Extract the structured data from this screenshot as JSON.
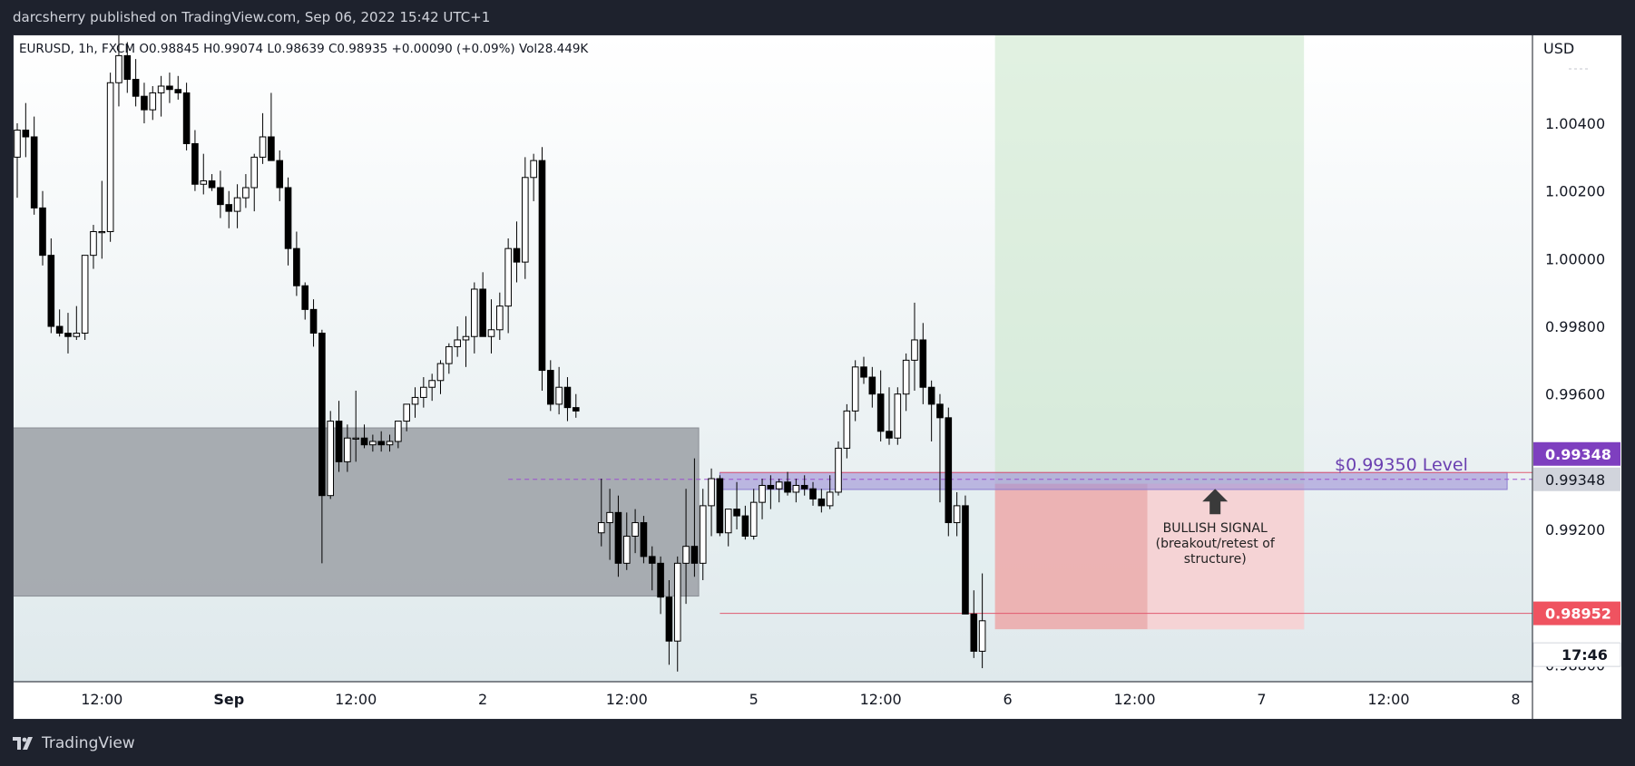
{
  "header": {
    "text": "darcsherry published on TradingView.com, Sep 06, 2022 15:42 UTC+1"
  },
  "footer": {
    "brand": "TradingView",
    "logo_icon": "tradingview-logo-icon"
  },
  "colors": {
    "bull_candle": "#ffffff",
    "bear_candle": "#000000",
    "wick": "#000000",
    "gray_zone": "#a0a4aa",
    "green_zone": "#c8e6c9",
    "red_zone": "#ef9a9a",
    "purple_zone": "#9c8fd6",
    "purple_label": "#7e3fbf",
    "red_label": "#ef5360",
    "gray_label": "#d1d4dc",
    "level_text": "#6a3fb0"
  },
  "chart_data": {
    "type": "candlestick",
    "symbol_info": {
      "symbol": "EURUSD, 1h, FXCM",
      "open": "O0.98845",
      "high": "H0.99074",
      "low": "L0.98639",
      "close": "C0.98935",
      "change": "+0.00090 (+0.09%)",
      "volume": "Vol28.449K"
    },
    "currency": "USD",
    "y_ticks": [
      "1.00400",
      "1.00200",
      "1.00000",
      "0.99800",
      "0.99600",
      "0.99200",
      "0.98800"
    ],
    "y_tick_values": [
      1.004,
      1.002,
      1.0,
      0.998,
      0.996,
      0.992,
      0.988
    ],
    "ylim": [
      0.9875,
      1.0066
    ],
    "x_ticks": [
      "12:00",
      "Sep",
      "12:00",
      "2",
      "12:00",
      "5",
      "12:00",
      "6",
      "12:00",
      "7",
      "12:00",
      "8"
    ],
    "x_tick_bar_index": [
      10,
      25,
      40,
      55,
      70,
      85,
      100,
      115,
      130,
      145,
      160,
      175
    ],
    "price_labels": [
      {
        "text": "0.99348",
        "style": "purple",
        "value": 0.99348
      },
      {
        "text": "0.99348",
        "style": "gray",
        "value": 0.99348
      },
      {
        "text": "0.98952",
        "style": "red",
        "value": 0.98952
      },
      {
        "text": "17:46",
        "style": "white",
        "value": 0.98905
      }
    ],
    "annotations": {
      "level_text": "$0.99350 Level",
      "signal_line1": "BULLISH SIGNAL",
      "signal_line2": "(breakout/retest of",
      "signal_line3": "structure)"
    },
    "zones": {
      "gray": {
        "bar_start": -0.5,
        "bar_end": 78.5,
        "price_top": 0.995,
        "price_bottom": 0.99003
      },
      "purple": {
        "bar_start": 81,
        "bar_end": 174,
        "price_top": 0.99368,
        "price_bottom": 0.99318
      },
      "green": {
        "bar_start": 113.5,
        "bar_end": 150,
        "price_top": 1.0066,
        "price_bottom": 0.99335
      },
      "red": {
        "bar_start": 113.5,
        "bar_end": 150,
        "price_top": 0.99335,
        "price_bottom": 0.98905
      },
      "lower_band": {
        "bar_start": 81,
        "bar_end": 150,
        "price_top": 0.99335,
        "price_bottom": 0.98952
      }
    },
    "lines": {
      "dashed_purple": {
        "bar_start": 58,
        "value": 0.99348
      },
      "red_upper": {
        "bar_start": 81,
        "value": 0.99368
      },
      "red_lower": {
        "bar_start": 81,
        "value": 0.98952
      }
    },
    "candles_ohlc": [
      [
        1.003,
        1.004,
        1.0018,
        1.0038
      ],
      [
        1.0038,
        1.0046,
        1.003,
        1.0036
      ],
      [
        1.0036,
        1.0042,
        1.0013,
        1.0015
      ],
      [
        1.0015,
        1.002,
        0.9998,
        1.0001
      ],
      [
        1.0001,
        1.0006,
        0.9978,
        0.998
      ],
      [
        0.998,
        0.9985,
        0.9977,
        0.9978
      ],
      [
        0.9978,
        0.9984,
        0.9972,
        0.9977
      ],
      [
        0.9977,
        0.9986,
        0.9976,
        0.9978
      ],
      [
        0.9978,
        0.9997,
        0.9976,
        1.0001
      ],
      [
        1.0001,
        1.001,
        0.9997,
        1.0008
      ],
      [
        1.0008,
        1.0023,
        1.0,
        1.0008
      ],
      [
        1.0008,
        1.0055,
        1.0005,
        1.0052
      ],
      [
        1.0052,
        1.0066,
        1.0045,
        1.006
      ],
      [
        1.006,
        1.0064,
        1.0049,
        1.0053
      ],
      [
        1.0053,
        1.0059,
        1.0045,
        1.0048
      ],
      [
        1.0048,
        1.0052,
        1.004,
        1.0044
      ],
      [
        1.0044,
        1.0051,
        1.0041,
        1.0049
      ],
      [
        1.0049,
        1.0054,
        1.0042,
        1.0051
      ],
      [
        1.0051,
        1.0055,
        1.0046,
        1.005
      ],
      [
        1.005,
        1.0054,
        1.0047,
        1.0049
      ],
      [
        1.0049,
        1.0052,
        1.0032,
        1.0034
      ],
      [
        1.0034,
        1.0038,
        1.002,
        1.0022
      ],
      [
        1.0022,
        1.0031,
        1.0019,
        1.0023
      ],
      [
        1.0023,
        1.0025,
        1.002,
        1.0021
      ],
      [
        1.0021,
        1.0026,
        1.0012,
        1.0016
      ],
      [
        1.0016,
        1.002,
        1.0009,
        1.0014
      ],
      [
        1.0014,
        1.0022,
        1.0009,
        1.0018
      ],
      [
        1.0018,
        1.0025,
        1.0015,
        1.0021
      ],
      [
        1.0021,
        1.0031,
        1.0014,
        1.003
      ],
      [
        1.003,
        1.0043,
        1.0028,
        1.0036
      ],
      [
        1.0036,
        1.0049,
        1.0033,
        1.0029
      ],
      [
        1.0029,
        1.0032,
        1.0017,
        1.0021
      ],
      [
        1.0021,
        1.0024,
        0.9998,
        1.0003
      ],
      [
        1.0003,
        1.0008,
        0.9989,
        0.9992
      ],
      [
        0.9992,
        0.9993,
        0.9982,
        0.9985
      ],
      [
        0.9985,
        0.9988,
        0.9974,
        0.9978
      ],
      [
        0.9978,
        0.9979,
        0.991,
        0.993
      ],
      [
        0.993,
        0.9955,
        0.9929,
        0.9952
      ],
      [
        0.9952,
        0.9958,
        0.9937,
        0.994
      ],
      [
        0.994,
        0.9951,
        0.9937,
        0.9947
      ],
      [
        0.9947,
        0.9961,
        0.994,
        0.9947
      ],
      [
        0.9947,
        0.9951,
        0.9944,
        0.9945
      ],
      [
        0.9945,
        0.9948,
        0.9943,
        0.9946
      ],
      [
        0.9946,
        0.9949,
        0.9943,
        0.9945
      ],
      [
        0.9945,
        0.9948,
        0.9943,
        0.9946
      ],
      [
        0.9946,
        0.9952,
        0.9944,
        0.9952
      ],
      [
        0.9952,
        0.9955,
        0.9949,
        0.9957
      ],
      [
        0.9957,
        0.9962,
        0.9953,
        0.9959
      ],
      [
        0.9959,
        0.9965,
        0.9956,
        0.9962
      ],
      [
        0.9962,
        0.9966,
        0.9958,
        0.9964
      ],
      [
        0.9964,
        0.997,
        0.996,
        0.9969
      ],
      [
        0.9969,
        0.9975,
        0.9966,
        0.9974
      ],
      [
        0.9974,
        0.998,
        0.9971,
        0.9976
      ],
      [
        0.9976,
        0.9983,
        0.9968,
        0.9977
      ],
      [
        0.9977,
        0.9993,
        0.9972,
        0.9991
      ],
      [
        0.9991,
        0.9996,
        0.9984,
        0.9977
      ],
      [
        0.9977,
        0.9988,
        0.9972,
        0.9979
      ],
      [
        0.9979,
        0.999,
        0.9976,
        0.9986
      ],
      [
        0.9986,
        1.0006,
        0.9978,
        1.0003
      ],
      [
        1.0003,
        1.0011,
        0.9993,
        0.9999
      ],
      [
        0.9999,
        1.003,
        0.9994,
        1.0024
      ],
      [
        1.0024,
        1.0031,
        1.0017,
        1.0029
      ],
      [
        1.0029,
        1.0033,
        0.9961,
        0.9967
      ],
      [
        0.9967,
        0.997,
        0.9955,
        0.9957
      ],
      [
        0.9957,
        0.9968,
        0.9954,
        0.9962
      ],
      [
        0.9962,
        0.9965,
        0.9952,
        0.9956
      ],
      [
        0.9956,
        0.996,
        0.9953,
        0.9955
      ]
    ],
    "candles_ohlc_part2": [
      [
        0.9919,
        0.9935,
        0.9915,
        0.9922
      ],
      [
        0.9922,
        0.9932,
        0.9911,
        0.9925
      ],
      [
        0.9925,
        0.993,
        0.9906,
        0.991
      ],
      [
        0.991,
        0.9925,
        0.9908,
        0.9918
      ],
      [
        0.9918,
        0.9926,
        0.9913,
        0.9922
      ],
      [
        0.9922,
        0.9924,
        0.991,
        0.9912
      ],
      [
        0.9912,
        0.9915,
        0.9902,
        0.991
      ],
      [
        0.991,
        0.9912,
        0.9895,
        0.99
      ],
      [
        0.99,
        0.9905,
        0.988,
        0.9887
      ],
      [
        0.9887,
        0.9912,
        0.9878,
        0.991
      ],
      [
        0.991,
        0.9932,
        0.9898,
        0.9915
      ],
      [
        0.9915,
        0.9941,
        0.9906,
        0.991
      ],
      [
        0.991,
        0.9932,
        0.9905,
        0.9927
      ],
      [
        0.9927,
        0.9938,
        0.9918,
        0.9935
      ],
      [
        0.9935,
        0.9936,
        0.9918,
        0.9919
      ],
      [
        0.9919,
        0.9926,
        0.9915,
        0.9926
      ],
      [
        0.9926,
        0.9934,
        0.992,
        0.9924
      ],
      [
        0.9924,
        0.9927,
        0.9917,
        0.9918
      ],
      [
        0.9918,
        0.9932,
        0.9917,
        0.9928
      ],
      [
        0.9928,
        0.9935,
        0.9923,
        0.9933
      ],
      [
        0.9933,
        0.9936,
        0.9926,
        0.9932
      ],
      [
        0.9932,
        0.9935,
        0.9928,
        0.9934
      ],
      [
        0.9934,
        0.9937,
        0.993,
        0.9931
      ],
      [
        0.9931,
        0.9935,
        0.9928,
        0.9933
      ],
      [
        0.9933,
        0.9936,
        0.993,
        0.9932
      ],
      [
        0.9932,
        0.9934,
        0.9927,
        0.9929
      ],
      [
        0.9929,
        0.9932,
        0.9925,
        0.9927
      ],
      [
        0.9927,
        0.9936,
        0.9926,
        0.9931
      ],
      [
        0.9931,
        0.9946,
        0.993,
        0.9944
      ],
      [
        0.9944,
        0.9957,
        0.9941,
        0.9955
      ],
      [
        0.9955,
        0.997,
        0.9952,
        0.9968
      ],
      [
        0.9968,
        0.9971,
        0.9963,
        0.9965
      ],
      [
        0.9965,
        0.9968,
        0.9956,
        0.996
      ],
      [
        0.996,
        0.9967,
        0.9946,
        0.9949
      ],
      [
        0.9949,
        0.9962,
        0.9945,
        0.9947
      ],
      [
        0.9947,
        0.9962,
        0.9945,
        0.996
      ],
      [
        0.996,
        0.9972,
        0.9955,
        0.997
      ],
      [
        0.997,
        0.9987,
        0.9961,
        0.9976
      ],
      [
        0.9976,
        0.9981,
        0.9957,
        0.9962
      ],
      [
        0.9962,
        0.9964,
        0.9946,
        0.9957
      ],
      [
        0.9957,
        0.996,
        0.9928,
        0.9953
      ],
      [
        0.9953,
        0.9956,
        0.9918,
        0.9922
      ],
      [
        0.9922,
        0.9931,
        0.9918,
        0.9927
      ],
      [
        0.9927,
        0.993,
        0.9895,
        0.9895
      ],
      [
        0.9895,
        0.9902,
        0.9882,
        0.9884
      ],
      [
        0.9884,
        0.9907,
        0.9879,
        0.9893
      ]
    ]
  }
}
